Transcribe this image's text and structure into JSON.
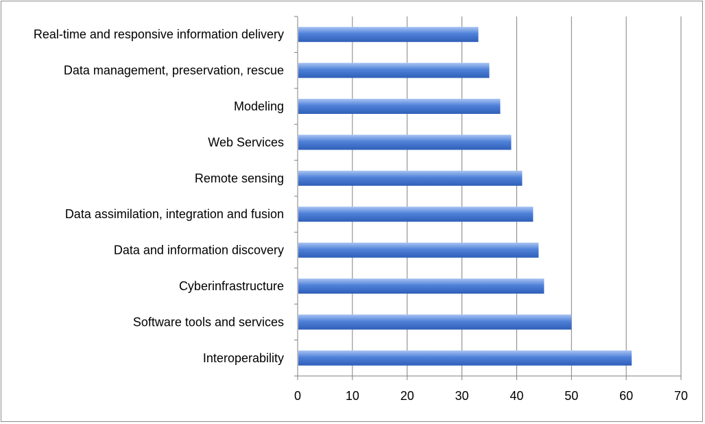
{
  "chart_data": {
    "type": "bar",
    "orientation": "horizontal",
    "title": "",
    "xlabel": "",
    "ylabel": "",
    "categories": [
      "Real-time and responsive information delivery",
      "Data management, preservation, rescue",
      "Modeling",
      "Web Services",
      "Remote sensing",
      "Data assimilation, integration and fusion",
      "Data and information discovery",
      "Cyberinfrastructure",
      "Software tools and services",
      "Interoperability"
    ],
    "values": [
      33,
      35,
      37,
      39,
      41,
      43,
      44,
      45,
      50,
      61
    ],
    "xlim": [
      0,
      70
    ],
    "xticks": [
      "0",
      "10",
      "20",
      "30",
      "40",
      "50",
      "60",
      "70"
    ],
    "grid": true,
    "legend": "none",
    "colors": {
      "bar_light": "#a9c4f2",
      "bar": "#4f81d9",
      "bar_dark": "#2f5fb8",
      "grid": "#7f7f7f",
      "axis": "#7f7f7f"
    }
  }
}
